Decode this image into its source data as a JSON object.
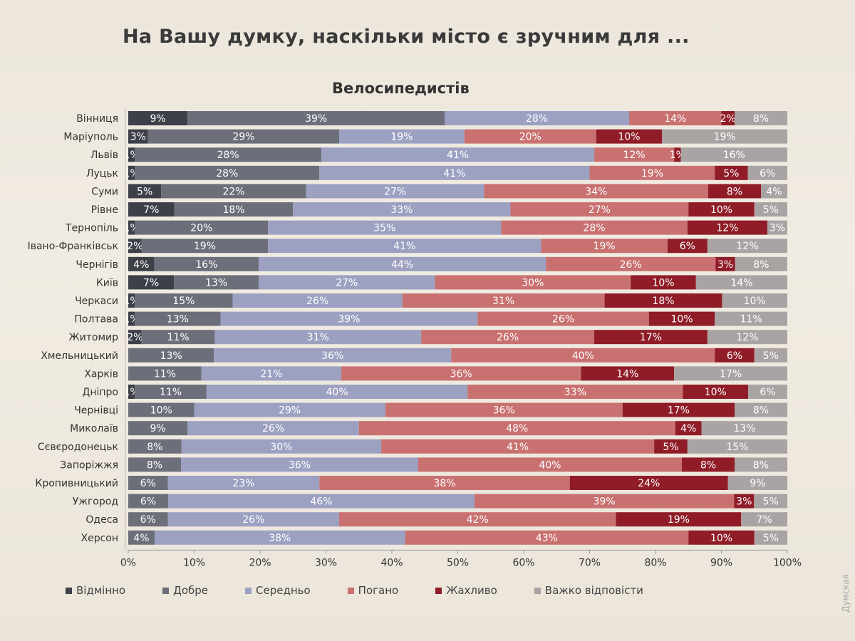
{
  "title": "На Вашу думку, наскільки місто є зручним для ...",
  "watermark": "Думская",
  "chart_data": {
    "type": "bar",
    "orientation": "horizontal",
    "stacked": true,
    "title": "Велосипедистів",
    "xlim": [
      0,
      100
    ],
    "x_ticks": [
      "0%",
      "10%",
      "20%",
      "30%",
      "40%",
      "50%",
      "60%",
      "70%",
      "80%",
      "90%",
      "100%"
    ],
    "legend_position": "bottom",
    "categories": [
      "Вінниця",
      "Маріуполь",
      "Львів",
      "Луцьк",
      "Суми",
      "Рівне",
      "Тернопіль",
      "Івано-Франківськ",
      "Чернігів",
      "Київ",
      "Черкаси",
      "Полтава",
      "Житомир",
      "Хмельницький",
      "Харків",
      "Дніпро",
      "Чернівці",
      "Миколаїв",
      "Сєвєродонецьк",
      "Запоріжжя",
      "Кропивницький",
      "Ужгород",
      "Одеса",
      "Херсон"
    ],
    "series": [
      {
        "name": "Відмінно",
        "color": "#3d4048",
        "values": [
          9,
          3,
          1,
          1,
          5,
          7,
          1,
          2,
          4,
          7,
          1,
          1,
          2,
          0,
          0,
          1,
          0,
          0,
          0,
          0,
          0,
          0,
          0,
          0
        ]
      },
      {
        "name": "Добре",
        "color": "#6c6f79",
        "values": [
          39,
          29,
          28,
          28,
          22,
          18,
          20,
          19,
          16,
          13,
          15,
          13,
          11,
          13,
          11,
          11,
          10,
          9,
          8,
          8,
          6,
          6,
          6,
          4
        ]
      },
      {
        "name": "Середньо",
        "color": "#9ca1c2",
        "values": [
          28,
          19,
          41,
          41,
          27,
          33,
          35,
          41,
          44,
          27,
          26,
          39,
          31,
          36,
          21,
          40,
          29,
          26,
          30,
          36,
          23,
          46,
          26,
          38
        ]
      },
      {
        "name": "Погано",
        "color": "#c97170",
        "values": [
          14,
          20,
          12,
          19,
          34,
          27,
          28,
          19,
          26,
          30,
          31,
          26,
          26,
          40,
          36,
          33,
          36,
          48,
          41,
          40,
          38,
          39,
          42,
          43
        ]
      },
      {
        "name": "Жахливо",
        "color": "#8f1c27",
        "values": [
          2,
          10,
          1,
          5,
          8,
          10,
          12,
          6,
          3,
          10,
          18,
          10,
          17,
          6,
          14,
          10,
          17,
          4,
          5,
          8,
          24,
          3,
          19,
          10
        ]
      },
      {
        "name": "Важко відповісти",
        "color": "#aaa3a4",
        "values": [
          8,
          19,
          16,
          6,
          4,
          5,
          3,
          12,
          8,
          14,
          10,
          11,
          12,
          5,
          17,
          6,
          8,
          13,
          15,
          8,
          9,
          5,
          7,
          5
        ]
      }
    ]
  }
}
